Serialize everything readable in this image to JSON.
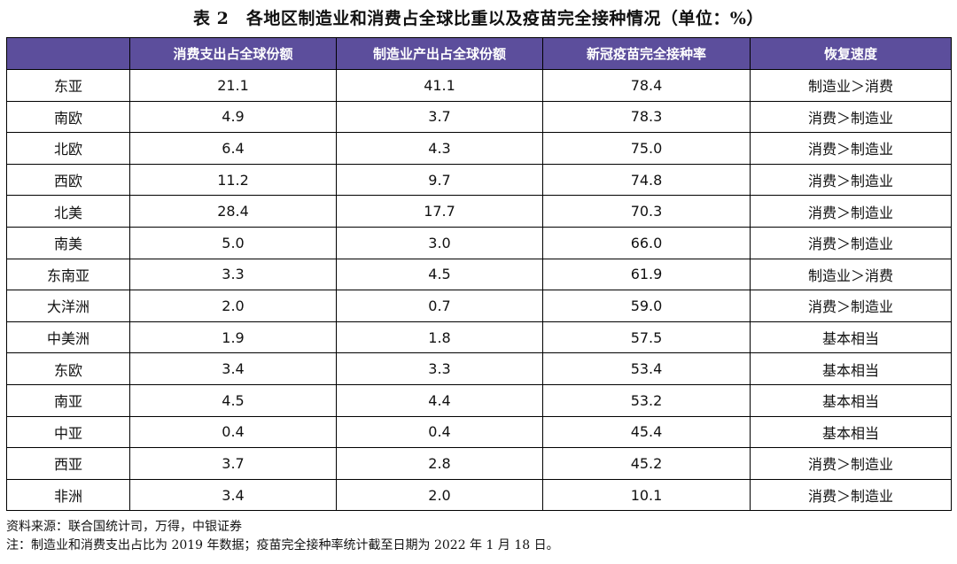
{
  "title": "表 2　各地区制造业和消费占全球比重以及疫苗完全接种情况（单位：%）",
  "table": {
    "headers": [
      "",
      "消费支出占全球份额",
      "制造业产出占全球份额",
      "新冠疫苗完全接种率",
      "恢复速度"
    ],
    "rows": [
      [
        "东亚",
        "21.1",
        "41.1",
        "78.4",
        "制造业＞消费"
      ],
      [
        "南欧",
        "4.9",
        "3.7",
        "78.3",
        "消费＞制造业"
      ],
      [
        "北欧",
        "6.4",
        "4.3",
        "75.0",
        "消费＞制造业"
      ],
      [
        "西欧",
        "11.2",
        "9.7",
        "74.8",
        "消费＞制造业"
      ],
      [
        "北美",
        "28.4",
        "17.7",
        "70.3",
        "消费＞制造业"
      ],
      [
        "南美",
        "5.0",
        "3.0",
        "66.0",
        "消费＞制造业"
      ],
      [
        "东南亚",
        "3.3",
        "4.5",
        "61.9",
        "制造业＞消费"
      ],
      [
        "大洋洲",
        "2.0",
        "0.7",
        "59.0",
        "消费＞制造业"
      ],
      [
        "中美洲",
        "1.9",
        "1.8",
        "57.5",
        "基本相当"
      ],
      [
        "东欧",
        "3.4",
        "3.3",
        "53.4",
        "基本相当"
      ],
      [
        "南亚",
        "4.5",
        "4.4",
        "53.2",
        "基本相当"
      ],
      [
        "中亚",
        "0.4",
        "0.4",
        "45.4",
        "基本相当"
      ],
      [
        "西亚",
        "3.7",
        "2.8",
        "45.2",
        "消费＞制造业"
      ],
      [
        "非洲",
        "3.4",
        "2.0",
        "10.1",
        "消费＞制造业"
      ]
    ]
  },
  "source": "资料来源：联合国统计司，万得，中银证券",
  "note": "注：制造业和消费支出占比为 2019 年数据；疫苗完全接种率统计截至日期为 2022 年 1 月 18 日。",
  "colors": {
    "header_background": "#5c4e9c",
    "header_text": "#ffffff",
    "border": "#000000"
  }
}
